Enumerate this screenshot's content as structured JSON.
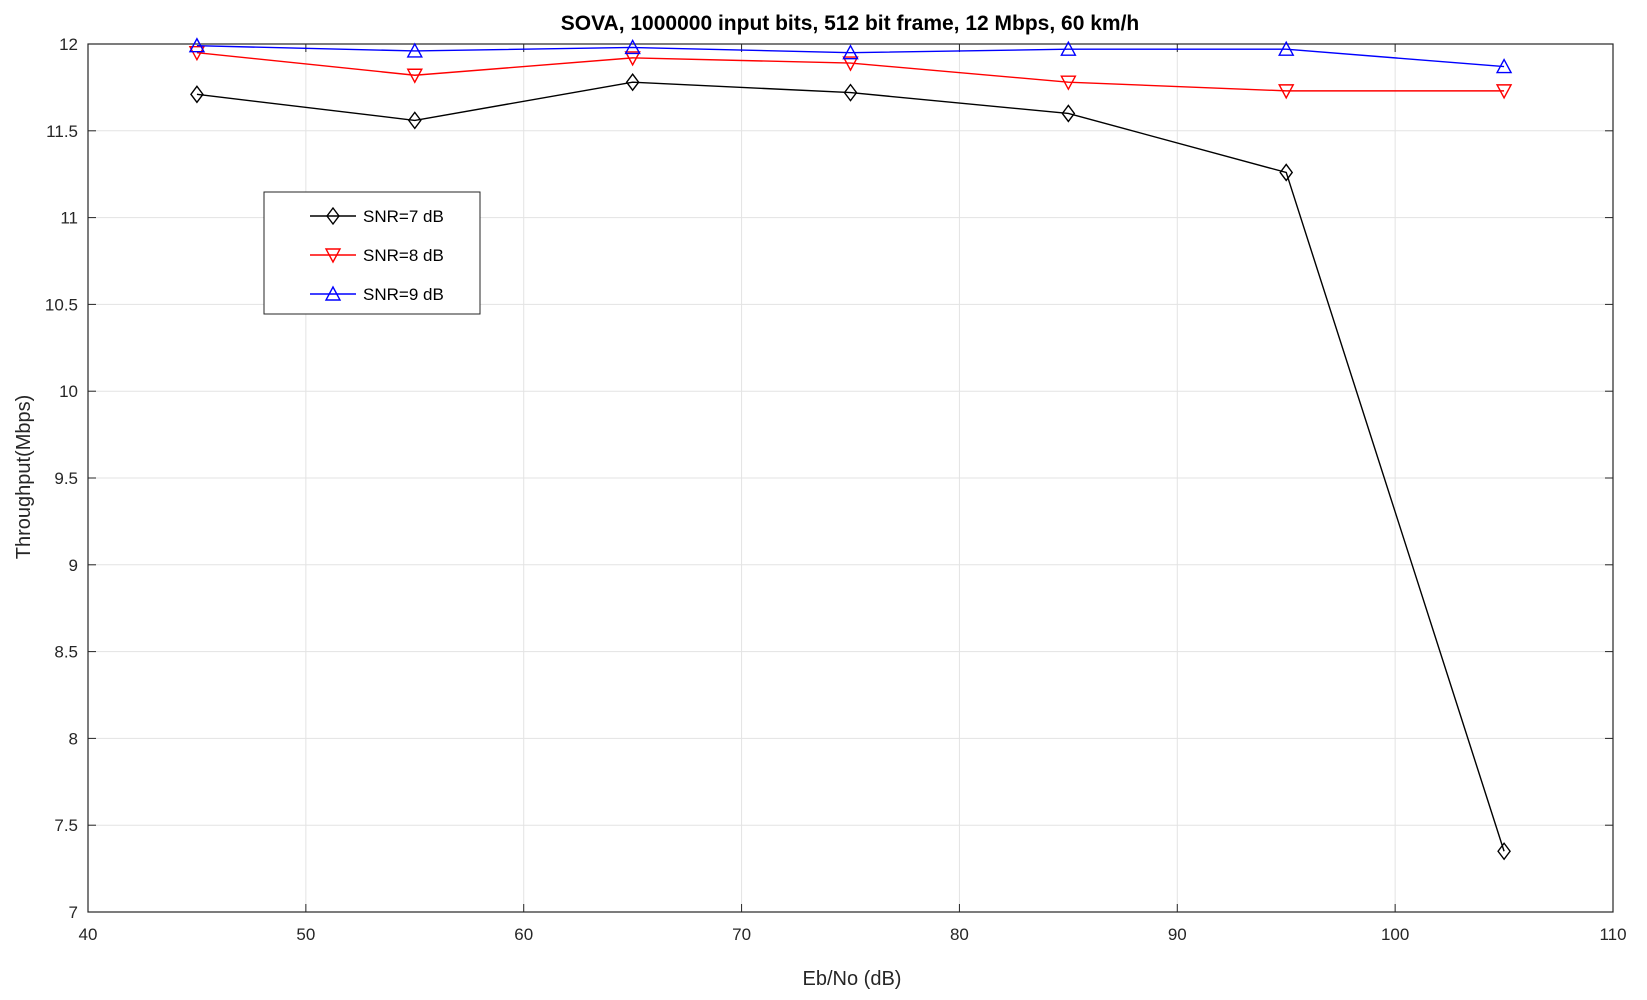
{
  "chart_data": {
    "type": "line",
    "title": "SOVA, 1000000 input bits, 512 bit frame, 12 Mbps, 60 km/h",
    "xlabel": "Eb/No (dB)",
    "ylabel": "Throughput(Mbps)",
    "xlim": [
      40,
      110
    ],
    "ylim": [
      7,
      12
    ],
    "xticks": [
      "40",
      "50",
      "60",
      "70",
      "80",
      "90",
      "100",
      "110"
    ],
    "yticks": [
      "7",
      "7.5",
      "8",
      "8.5",
      "9",
      "9.5",
      "10",
      "10.5",
      "11",
      "11.5",
      "12"
    ],
    "grid": true,
    "legend_position": "upper-left",
    "x": [
      45,
      55,
      65,
      75,
      85,
      95,
      105
    ],
    "series": [
      {
        "name": "SNR=7 dB",
        "color": "#000000",
        "marker": "diamond",
        "values": [
          11.71,
          11.56,
          11.78,
          11.72,
          11.6,
          11.26,
          7.35
        ]
      },
      {
        "name": "SNR=8 dB",
        "color": "#ff0000",
        "marker": "triangle-down",
        "values": [
          11.95,
          11.82,
          11.92,
          11.89,
          11.78,
          11.73,
          11.73
        ]
      },
      {
        "name": "SNR=9 dB",
        "color": "#0000ff",
        "marker": "triangle-up",
        "values": [
          11.99,
          11.96,
          11.98,
          11.95,
          11.97,
          11.97,
          11.87
        ]
      }
    ]
  }
}
